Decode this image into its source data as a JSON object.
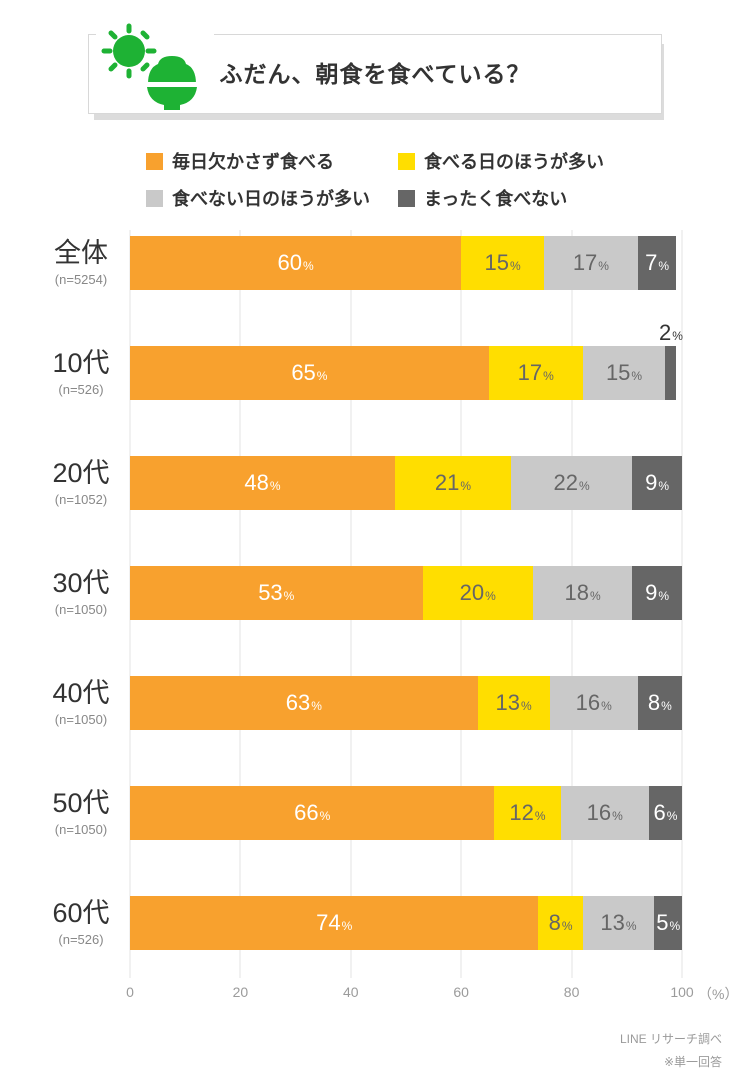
{
  "header": {
    "title": "ふだん、朝食を食べている？",
    "icon": "sun-and-rice-bowl",
    "icon_color": "#1eb234"
  },
  "legend": [
    {
      "label": "毎日欠かさず食べる",
      "color": "#F8A12E"
    },
    {
      "label": "食べる日のほうが多い",
      "color": "#FFDE00"
    },
    {
      "label": "食べない日のほうが多い",
      "color": "#C9C9C9"
    },
    {
      "label": "まったく食べない",
      "color": "#666666"
    }
  ],
  "chart_data": {
    "type": "bar",
    "stacked": true,
    "orientation": "horizontal",
    "title": "ふだん、朝食を食べている？",
    "unit_symbol": "%",
    "x_axis": {
      "ticks": [
        0,
        20,
        40,
        60,
        80,
        100
      ],
      "unit_label": "（%）",
      "range": [
        0,
        100
      ],
      "grid": true
    },
    "categories": [
      {
        "label": "全体",
        "n": "(n=5254)"
      },
      {
        "label": "10代",
        "n": "(n=526)"
      },
      {
        "label": "20代",
        "n": "(n=1052)"
      },
      {
        "label": "30代",
        "n": "(n=1050)"
      },
      {
        "label": "40代",
        "n": "(n=1050)"
      },
      {
        "label": "50代",
        "n": "(n=1050)"
      },
      {
        "label": "60代",
        "n": "(n=526)"
      }
    ],
    "series": [
      {
        "name": "毎日欠かさず食べる",
        "color": "#F8A12E",
        "label_color": "#ffffff",
        "values": [
          60,
          65,
          48,
          53,
          63,
          66,
          74
        ]
      },
      {
        "name": "食べる日のほうが多い",
        "color": "#FFDE00",
        "label_color": "#666666",
        "values": [
          15,
          17,
          21,
          20,
          13,
          12,
          8
        ]
      },
      {
        "name": "食べない日のほうが多い",
        "color": "#C9C9C9",
        "label_color": "#666666",
        "values": [
          17,
          15,
          22,
          18,
          16,
          16,
          13
        ]
      },
      {
        "name": "まったく食べない",
        "color": "#666666",
        "label_color": "#ffffff",
        "values": [
          7,
          2,
          9,
          9,
          8,
          6,
          5
        ]
      }
    ]
  },
  "footer": {
    "source": "LINE リサーチ調べ",
    "note": "※単一回答"
  }
}
